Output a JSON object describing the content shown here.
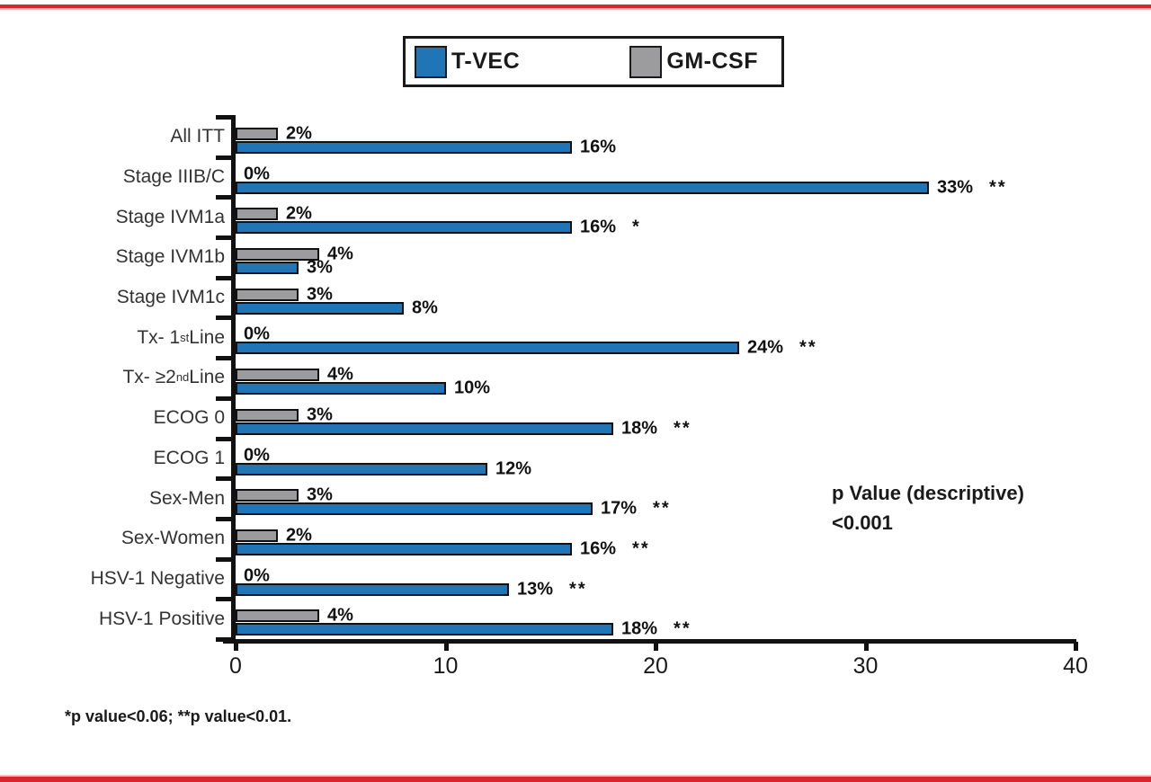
{
  "page": {
    "background": "#ffffff",
    "top_rule_color": "#D8262C",
    "bottom_rule_color": "#D8262C"
  },
  "legend": {
    "items": [
      {
        "label": "T-VEC",
        "color": "#1F75B5"
      },
      {
        "label": "GM-CSF",
        "color": "#9C9C9E"
      }
    ]
  },
  "chart_data": {
    "type": "bar",
    "orientation": "horizontal",
    "title": "",
    "xlabel": "",
    "ylabel": "",
    "xlim": [
      0,
      40
    ],
    "x_ticks": [
      "0",
      "10",
      "20",
      "30",
      "40"
    ],
    "x_tick_values": [
      0,
      10,
      20,
      30,
      40
    ],
    "grid": false,
    "legend_position": "top-center",
    "bar_outline_color": "#111111",
    "categories": [
      "All ITT",
      "Stage IIIB/C",
      "Stage IVM1a",
      "Stage IVM1b",
      "Stage IVM1c",
      "Tx- 1st Line",
      "Tx- ≥2nd Line",
      "ECOG 0",
      "ECOG 1",
      "Sex-Men",
      "Sex-Women",
      "HSV-1 Negative",
      "HSV-1 Positive"
    ],
    "category_label_parts": [
      [
        "All ITT"
      ],
      [
        "Stage IIIB/C"
      ],
      [
        "Stage IVM1a"
      ],
      [
        "Stage IVM1b"
      ],
      [
        "Stage IVM1c"
      ],
      [
        "Tx- 1",
        {
          "sup": "st"
        },
        " Line"
      ],
      [
        "Tx- ≥2",
        {
          "sup": "nd"
        },
        " Line"
      ],
      [
        "ECOG 0"
      ],
      [
        "ECOG 1"
      ],
      [
        "Sex-Men"
      ],
      [
        "Sex-Women"
      ],
      [
        "HSV-1 Negative"
      ],
      [
        "HSV-1 Positive"
      ]
    ],
    "series": [
      {
        "name": "GM-CSF",
        "color": "#9C9C9E",
        "values": [
          2,
          0,
          2,
          4,
          3,
          0,
          4,
          3,
          0,
          3,
          2,
          0,
          4
        ],
        "data_labels": [
          "2%",
          "0%",
          "2%",
          "4%",
          "3%",
          "0%",
          "4%",
          "3%",
          "0%",
          "3%",
          "2%",
          "0%",
          "4%"
        ],
        "significance": [
          "",
          "",
          "",
          "",
          "",
          "",
          "",
          "",
          "",
          "",
          "",
          "",
          ""
        ]
      },
      {
        "name": "T-VEC",
        "color": "#1F75B5",
        "values": [
          16,
          33,
          16,
          3,
          8,
          24,
          10,
          18,
          12,
          17,
          16,
          13,
          18
        ],
        "data_labels": [
          "16%",
          "33%",
          "16%",
          "3%",
          "8%",
          "24%",
          "10%",
          "18%",
          "12%",
          "17%",
          "16%",
          "13%",
          "18%"
        ],
        "significance": [
          "",
          "**",
          "*",
          "",
          "",
          "**",
          "",
          "**",
          "",
          "**",
          "**",
          "**",
          "**"
        ]
      }
    ],
    "annotation": {
      "lines": [
        "p Value (descriptive)",
        "<0.001"
      ]
    },
    "footnote": "*p value<0.06; **p value<0.01."
  }
}
